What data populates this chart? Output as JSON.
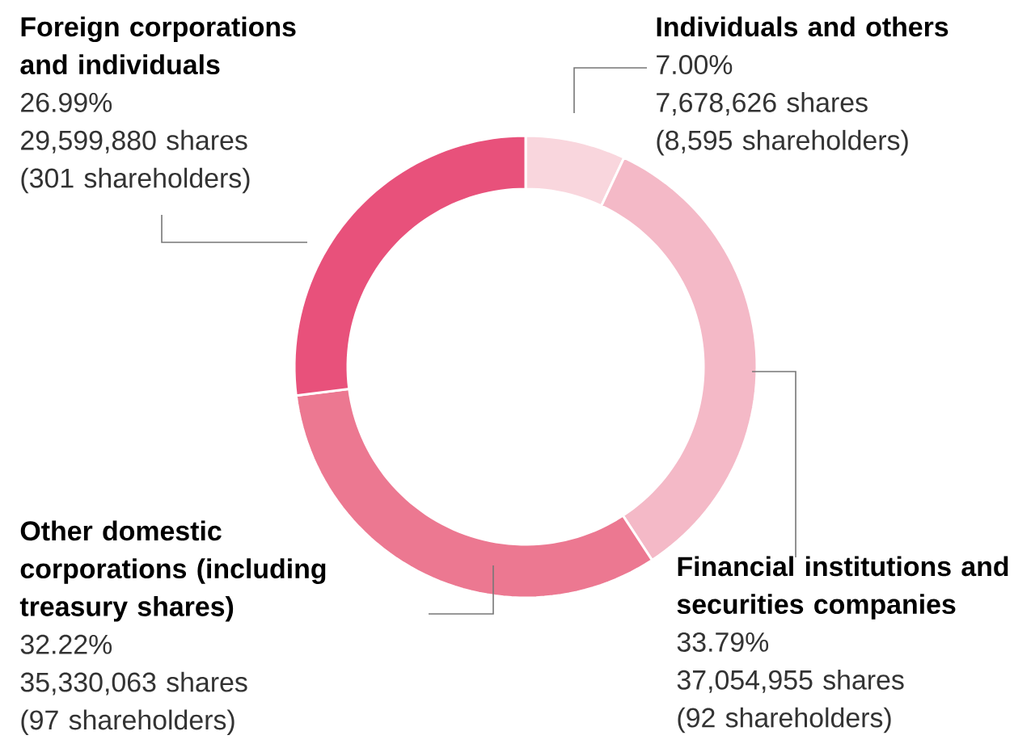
{
  "chart_data": {
    "type": "donut",
    "categories": [
      "Individuals and others",
      "Financial institutions and securities companies",
      "Other domestic corporations (including treasury shares)",
      "Foreign corporations and individuals"
    ],
    "values": [
      7.0,
      33.79,
      32.22,
      26.99
    ],
    "value_labels": [
      "7.00%",
      "33.79%",
      "32.22%",
      "26.99%"
    ],
    "colors": [
      "#f9d6dd",
      "#f4b9c7",
      "#ec7891",
      "#e8517b"
    ],
    "annotations": [
      "7,678,626 shares",
      "(8,595 shareholders)",
      "37,054,955 shares",
      "(92 shareholders)",
      "35,330,063 shares",
      "(97 shareholders)",
      "29,599,880 shares",
      "(301 shareholders)"
    ],
    "legend_title": null
  }
}
